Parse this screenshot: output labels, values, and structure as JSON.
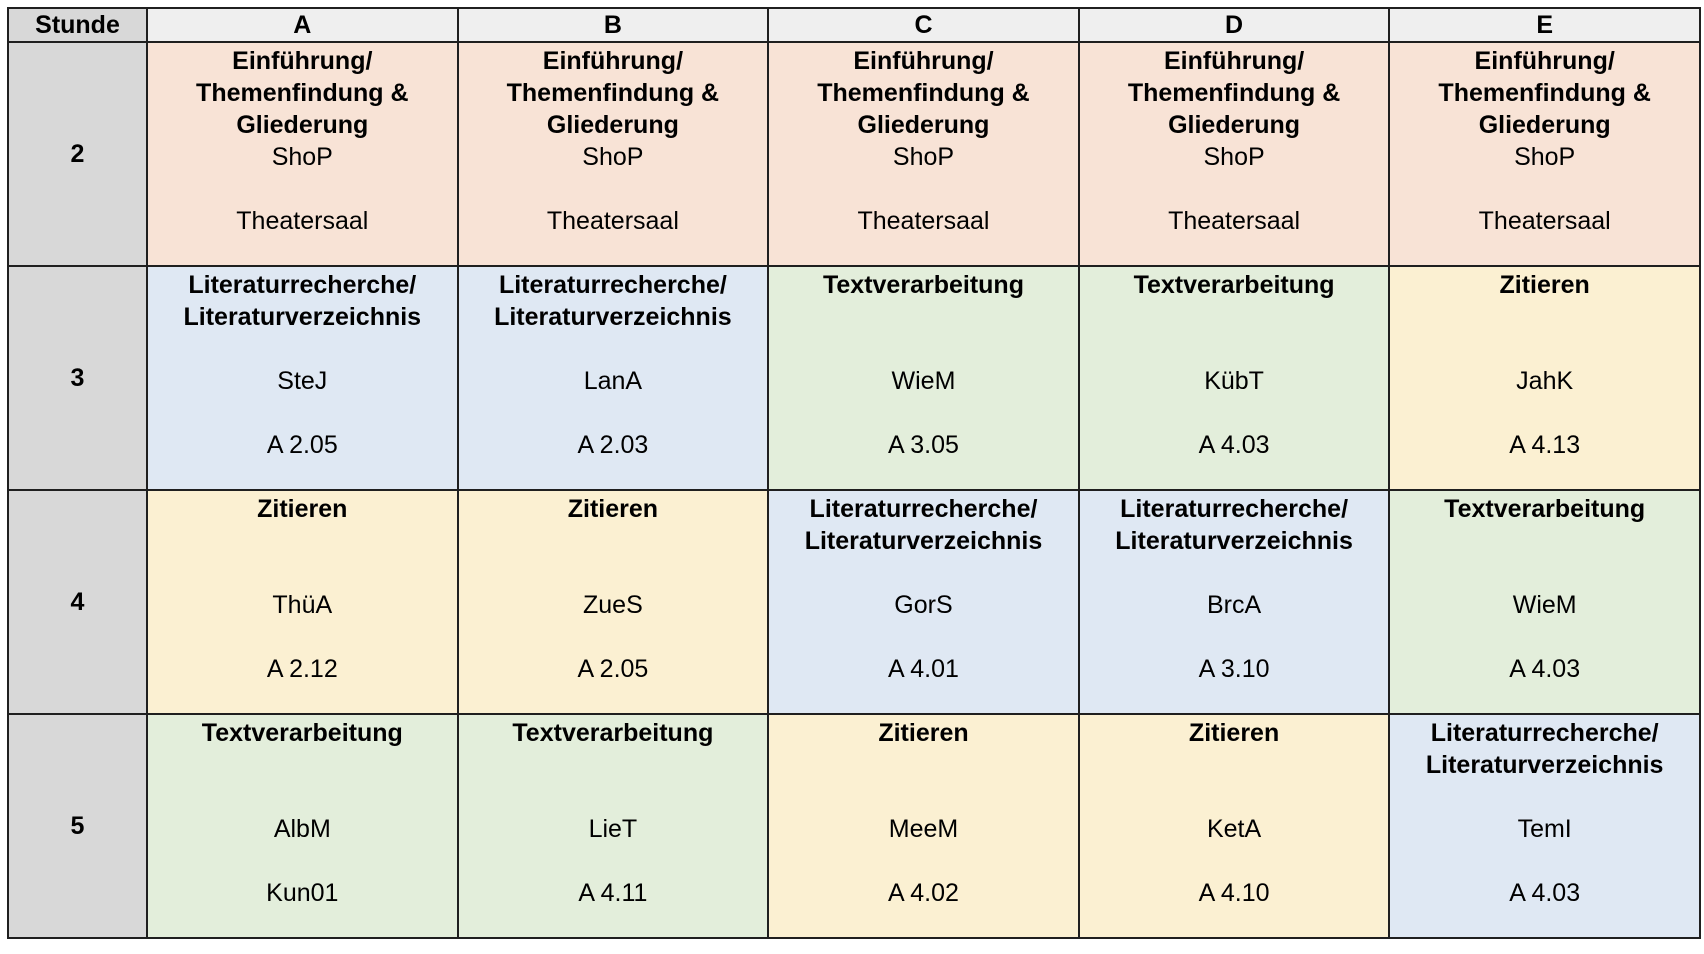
{
  "header": {
    "hour_label": "Stunde",
    "groups": [
      "A",
      "B",
      "C",
      "D",
      "E"
    ]
  },
  "colors": {
    "Einführung": "#f8e3d6",
    "Literaturrecherche": "#dfe8f3",
    "Textverarbeitung": "#e3eedb",
    "Zitieren": "#fbf0d2",
    "hour_column": "#d8d8d8"
  },
  "rows": [
    {
      "hour": "2",
      "cells": [
        {
          "topic": "Einführung/ Themenfindung & Gliederung",
          "kind": "Einführung",
          "teacher": "ShoP",
          "room": "Theatersaal"
        },
        {
          "topic": "Einführung/ Themenfindung & Gliederung",
          "kind": "Einführung",
          "teacher": "ShoP",
          "room": "Theatersaal"
        },
        {
          "topic": "Einführung/ Themenfindung & Gliederung",
          "kind": "Einführung",
          "teacher": "ShoP",
          "room": "Theatersaal"
        },
        {
          "topic": "Einführung/ Themenfindung & Gliederung",
          "kind": "Einführung",
          "teacher": "ShoP",
          "room": "Theatersaal"
        },
        {
          "topic": "Einführung/ Themenfindung & Gliederung",
          "kind": "Einführung",
          "teacher": "ShoP",
          "room": "Theatersaal"
        }
      ]
    },
    {
      "hour": "3",
      "cells": [
        {
          "topic": "Literaturrecherche/ Literaturverzeichnis",
          "kind": "Literaturrecherche",
          "teacher": "SteJ",
          "room": "A 2.05"
        },
        {
          "topic": "Literaturrecherche/ Literaturverzeichnis",
          "kind": "Literaturrecherche",
          "teacher": "LanA",
          "room": "A 2.03"
        },
        {
          "topic": "Textverarbeitung",
          "kind": "Textverarbeitung",
          "teacher": "WieM",
          "room": "A 3.05"
        },
        {
          "topic": "Textverarbeitung",
          "kind": "Textverarbeitung",
          "teacher": "KübT",
          "room": "A 4.03"
        },
        {
          "topic": "Zitieren",
          "kind": "Zitieren",
          "teacher": "JahK",
          "room": "A 4.13"
        }
      ]
    },
    {
      "hour": "4",
      "cells": [
        {
          "topic": "Zitieren",
          "kind": "Zitieren",
          "teacher": "ThüA",
          "room": "A 2.12"
        },
        {
          "topic": "Zitieren",
          "kind": "Zitieren",
          "teacher": "ZueS",
          "room": "A 2.05"
        },
        {
          "topic": "Literaturrecherche/ Literaturverzeichnis",
          "kind": "Literaturrecherche",
          "teacher": "GorS",
          "room": "A 4.01"
        },
        {
          "topic": "Literaturrecherche/ Literaturverzeichnis",
          "kind": "Literaturrecherche",
          "teacher": "BrcA",
          "room": "A 3.10"
        },
        {
          "topic": "Textverarbeitung",
          "kind": "Textverarbeitung",
          "teacher": "WieM",
          "room": "A 4.03"
        }
      ]
    },
    {
      "hour": "5",
      "cells": [
        {
          "topic": "Textverarbeitung",
          "kind": "Textverarbeitung",
          "teacher": "AlbM",
          "room": "Kun01"
        },
        {
          "topic": "Textverarbeitung",
          "kind": "Textverarbeitung",
          "teacher": "LieT",
          "room": "A 4.11"
        },
        {
          "topic": "Zitieren",
          "kind": "Zitieren",
          "teacher": "MeeM",
          "room": "A 4.02"
        },
        {
          "topic": "Zitieren",
          "kind": "Zitieren",
          "teacher": "KetA",
          "room": "A 4.10"
        },
        {
          "topic": "Literaturrecherche/ Literaturverzeichnis",
          "kind": "Literaturrecherche",
          "teacher": "TemI",
          "room": "A 4.03"
        }
      ]
    }
  ]
}
